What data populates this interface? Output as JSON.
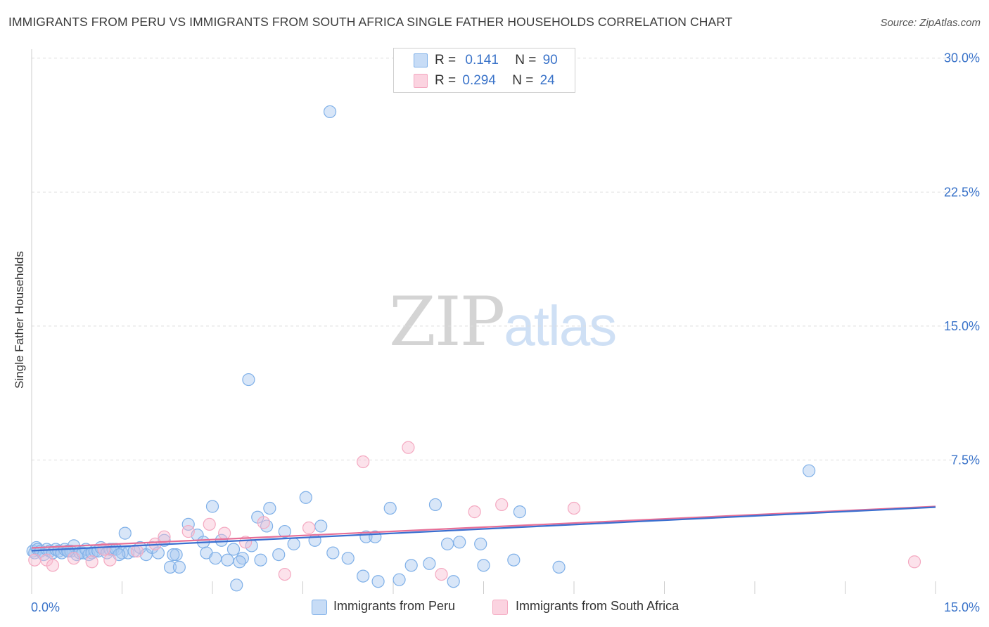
{
  "chart_data": {
    "type": "scatter",
    "title": "IMMIGRANTS FROM PERU VS IMMIGRANTS FROM SOUTH AFRICA SINGLE FATHER HOUSEHOLDS CORRELATION CHART",
    "source": "Source: ZipAtlas.com",
    "ylabel": "Single Father Households",
    "xlim": [
      0,
      15
    ],
    "ylim": [
      0,
      30.5
    ],
    "x_tick_labels": [
      "0.0%",
      "15.0%"
    ],
    "y_ticks": [
      {
        "value": 7.5,
        "label": "7.5%"
      },
      {
        "value": 15.0,
        "label": "15.0%"
      },
      {
        "value": 22.5,
        "label": "22.5%"
      },
      {
        "value": 30.0,
        "label": "30.0%"
      }
    ],
    "legend": {
      "rows": [
        {
          "r_label": "R =",
          "r_value": "0.141",
          "n_label": "N =",
          "n_value": "90"
        },
        {
          "r_label": "R =",
          "r_value": "0.294",
          "n_label": "N =",
          "n_value": "24"
        }
      ]
    },
    "watermark": {
      "zip": "ZIP",
      "atlas": "atlas"
    },
    "series": [
      {
        "name": "Immigrants from Peru",
        "color": "#7fb0e8",
        "line_color": "#3a6fd0",
        "trend": {
          "x0": 0.0,
          "y0": 2.5,
          "x1": 15.0,
          "y1": 4.9
        },
        "points": [
          [
            0.02,
            2.4
          ],
          [
            0.05,
            2.3
          ],
          [
            0.08,
            2.6
          ],
          [
            0.1,
            2.5
          ],
          [
            0.15,
            2.4
          ],
          [
            0.2,
            2.2
          ],
          [
            0.25,
            2.5
          ],
          [
            0.3,
            2.4
          ],
          [
            0.35,
            2.3
          ],
          [
            0.4,
            2.5
          ],
          [
            0.45,
            2.4
          ],
          [
            0.5,
            2.3
          ],
          [
            0.55,
            2.5
          ],
          [
            0.6,
            2.4
          ],
          [
            0.65,
            2.4
          ],
          [
            0.7,
            2.7
          ],
          [
            0.75,
            2.2
          ],
          [
            0.8,
            2.3
          ],
          [
            0.85,
            2.3
          ],
          [
            0.9,
            2.5
          ],
          [
            0.95,
            2.2
          ],
          [
            1.0,
            2.3
          ],
          [
            1.05,
            2.4
          ],
          [
            1.1,
            2.4
          ],
          [
            1.15,
            2.6
          ],
          [
            1.2,
            2.5
          ],
          [
            1.25,
            2.3
          ],
          [
            1.3,
            2.5
          ],
          [
            1.35,
            2.5
          ],
          [
            1.4,
            2.5
          ],
          [
            1.5,
            2.3
          ],
          [
            1.55,
            3.4
          ],
          [
            1.6,
            2.3
          ],
          [
            1.7,
            2.4
          ],
          [
            1.8,
            2.6
          ],
          [
            1.9,
            2.2
          ],
          [
            2.0,
            2.6
          ],
          [
            2.1,
            2.3
          ],
          [
            2.2,
            3.0
          ],
          [
            2.3,
            1.5
          ],
          [
            2.4,
            2.2
          ],
          [
            2.45,
            1.5
          ],
          [
            2.6,
            3.9
          ],
          [
            2.75,
            3.3
          ],
          [
            2.85,
            2.9
          ],
          [
            2.9,
            2.3
          ],
          [
            3.0,
            4.9
          ],
          [
            3.05,
            2.0
          ],
          [
            3.15,
            3.0
          ],
          [
            3.25,
            1.9
          ],
          [
            3.35,
            2.5
          ],
          [
            3.4,
            0.5
          ],
          [
            3.5,
            2.0
          ],
          [
            3.6,
            12.0
          ],
          [
            3.65,
            2.7
          ],
          [
            3.75,
            4.3
          ],
          [
            3.8,
            1.9
          ],
          [
            3.9,
            3.8
          ],
          [
            3.95,
            4.8
          ],
          [
            4.1,
            2.2
          ],
          [
            4.2,
            3.5
          ],
          [
            4.35,
            2.8
          ],
          [
            4.55,
            5.4
          ],
          [
            4.8,
            3.8
          ],
          [
            4.95,
            27.0
          ],
          [
            5.0,
            2.3
          ],
          [
            5.25,
            2.0
          ],
          [
            5.5,
            1.0
          ],
          [
            5.55,
            3.2
          ],
          [
            5.7,
            3.2
          ],
          [
            5.75,
            0.7
          ],
          [
            5.95,
            4.8
          ],
          [
            6.1,
            0.8
          ],
          [
            6.3,
            1.6
          ],
          [
            6.6,
            1.7
          ],
          [
            6.7,
            5.0
          ],
          [
            6.9,
            2.8
          ],
          [
            7.0,
            0.7
          ],
          [
            7.1,
            2.9
          ],
          [
            7.45,
            2.8
          ],
          [
            7.5,
            1.6
          ],
          [
            8.0,
            1.9
          ],
          [
            8.1,
            4.6
          ],
          [
            8.75,
            1.5
          ],
          [
            12.9,
            6.9
          ],
          [
            0.6,
            2.4
          ],
          [
            1.45,
            2.2
          ],
          [
            2.35,
            2.2
          ],
          [
            3.45,
            1.8
          ],
          [
            4.7,
            3.0
          ]
        ]
      },
      {
        "name": "Immigrants from South Africa",
        "color": "#f4a9c1",
        "line_color": "#e76f97",
        "trend": {
          "x0": 0.0,
          "y0": 2.5,
          "x1": 15.0,
          "y1": 4.9
        },
        "points": [
          [
            0.05,
            1.9
          ],
          [
            0.25,
            1.9
          ],
          [
            0.35,
            1.6
          ],
          [
            0.7,
            2.0
          ],
          [
            1.0,
            1.8
          ],
          [
            1.3,
            1.9
          ],
          [
            1.75,
            2.4
          ],
          [
            2.05,
            2.8
          ],
          [
            2.2,
            3.2
          ],
          [
            2.6,
            3.5
          ],
          [
            2.95,
            3.9
          ],
          [
            3.2,
            3.4
          ],
          [
            3.55,
            2.9
          ],
          [
            3.85,
            4.0
          ],
          [
            4.2,
            1.1
          ],
          [
            4.6,
            3.7
          ],
          [
            5.5,
            7.4
          ],
          [
            6.25,
            8.2
          ],
          [
            6.8,
            1.1
          ],
          [
            7.35,
            4.6
          ],
          [
            7.8,
            5.0
          ],
          [
            9.0,
            4.8
          ],
          [
            14.65,
            1.8
          ],
          [
            1.2,
            2.5
          ]
        ]
      }
    ]
  }
}
